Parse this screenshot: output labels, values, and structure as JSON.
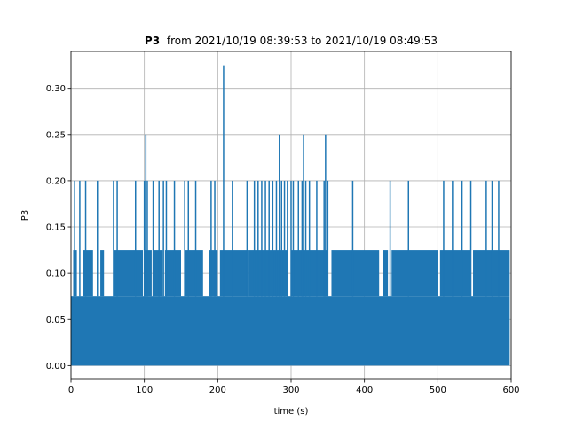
{
  "chart_data": {
    "type": "line",
    "title_bold": "P3",
    "title_rest": "from 2021/10/19 08:39:53 to 2021/10/19 08:49:53",
    "xlabel": "time (s)",
    "ylabel": "P3",
    "xlim": [
      0,
      600
    ],
    "ylim": [
      -0.015,
      0.34
    ],
    "grid": true,
    "x_ticks": [
      0,
      100,
      200,
      300,
      400,
      500,
      600
    ],
    "y_ticks": [
      0.0,
      0.05,
      0.1,
      0.15,
      0.2,
      0.25,
      0.3
    ],
    "y_tick_labels": [
      "0.00",
      "0.05",
      "0.10",
      "0.15",
      "0.20",
      "0.25",
      "0.30"
    ],
    "series": [
      {
        "color": "#1f77b4",
        "baseline_values": [
          0,
          0.075
        ],
        "level_0125_spans": [
          [
            3,
            8
          ],
          [
            16,
            30
          ],
          [
            40,
            45
          ],
          [
            58,
            98
          ],
          [
            100,
            110
          ],
          [
            113,
            125
          ],
          [
            128,
            150
          ],
          [
            155,
            180
          ],
          [
            188,
            200
          ],
          [
            203,
            240
          ],
          [
            242,
            295
          ],
          [
            300,
            350
          ],
          [
            355,
            420
          ],
          [
            425,
            432
          ],
          [
            437,
            500
          ],
          [
            503,
            545
          ],
          [
            548,
            598
          ]
        ],
        "spikes_020": [
          5,
          12,
          20,
          36,
          58,
          63,
          88,
          100,
          104,
          112,
          120,
          126,
          130,
          141,
          155,
          160,
          170,
          191,
          196,
          220,
          240,
          250,
          255,
          260,
          265,
          270,
          275,
          280,
          287,
          291,
          295,
          300,
          303,
          310,
          315,
          320,
          325,
          335,
          345,
          350,
          384,
          435,
          460,
          508,
          520,
          533,
          545,
          566,
          574,
          583
        ],
        "spikes_025": [
          102,
          284,
          317,
          347
        ],
        "spike_0325": [
          208
        ]
      }
    ]
  }
}
